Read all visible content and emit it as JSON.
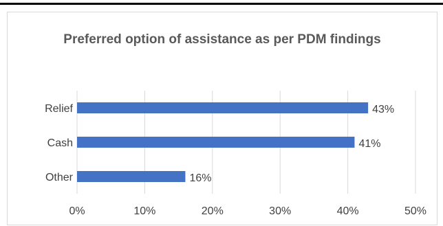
{
  "chart_data": {
    "type": "bar",
    "orientation": "horizontal",
    "title": "Preferred option of assistance as per PDM findings",
    "categories": [
      "Relief",
      "Cash",
      "Other"
    ],
    "values": [
      43,
      41,
      16
    ],
    "value_labels": [
      "43%",
      "41%",
      "16%"
    ],
    "xlim": [
      0,
      50
    ],
    "x_ticks": [
      0,
      10,
      20,
      30,
      40,
      50
    ],
    "x_tick_labels": [
      "0%",
      "10%",
      "20%",
      "30%",
      "40%",
      "50%"
    ],
    "xlabel": "",
    "ylabel": "",
    "grid": "vertical",
    "legend": "none",
    "colors": {
      "bar": "#4472c4",
      "grid": "#d9d9d9",
      "text": "#404040",
      "title": "#595959"
    }
  }
}
